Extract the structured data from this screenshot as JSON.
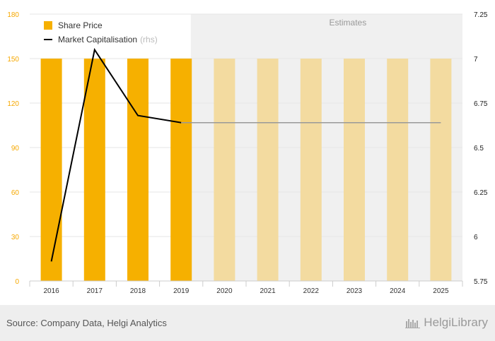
{
  "chart_data": {
    "type": "bar",
    "categories": [
      "2016",
      "2017",
      "2018",
      "2019",
      "2020",
      "2021",
      "2022",
      "2023",
      "2024",
      "2025"
    ],
    "estimate_start_index": 4,
    "estimates_label": "Estimates",
    "series": [
      {
        "name": "Share Price",
        "type": "bar",
        "axis": "left",
        "values": [
          150,
          150,
          150,
          150,
          150,
          150,
          150,
          150,
          150,
          150
        ],
        "color": "#f6b000",
        "estimate_color": "#f3dba0"
      },
      {
        "name": "Market Capitalisation",
        "unit_label": "(rhs)",
        "type": "line",
        "axis": "right",
        "values": [
          5.86,
          7.05,
          6.68,
          6.64,
          6.64,
          6.64,
          6.64,
          6.64,
          6.64,
          6.64
        ],
        "color": "#000000",
        "estimate_color": "#999999"
      }
    ],
    "y_left": {
      "ticks": [
        "0",
        "30",
        "60",
        "90",
        "120",
        "150",
        "180"
      ],
      "min": 0,
      "max": 180
    },
    "y_right": {
      "ticks": [
        "5.75",
        "6",
        "6.25",
        "6.5",
        "6.75",
        "7",
        "7.25"
      ],
      "min": 5.75,
      "max": 7.25
    },
    "grid": true,
    "legend_position": "top-left",
    "colors": {
      "left_axis": "#f6a800",
      "right_axis": "#222222"
    }
  },
  "footer": {
    "source": "Source: Company Data, Helgi Analytics",
    "brand": "HelgiLibrary"
  }
}
